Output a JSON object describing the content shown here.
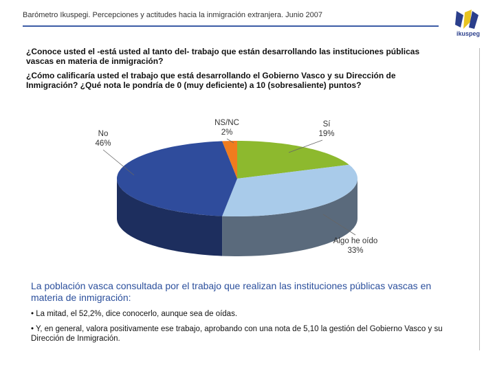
{
  "header": {
    "title": "Barómetro Ikuspegi. Percepciones y actitudes hacia la inmigración extranjera. Junio 2007",
    "logo": "ikuspeg"
  },
  "questions": [
    "¿Conoce usted el -está usted al tanto del-  trabajo que están desarrollando las instituciones públicas vascas en materia de inmigración?",
    "¿Cómo calificaría usted el trabajo que está desarrollando el Gobierno Vasco y su Dirección de Inmigración? ¿Qué nota le pondría de 0 (muy deficiente) a 10 (sobresaliente) puntos?"
  ],
  "chart_data": {
    "type": "pie",
    "categories": [
      "Sí",
      "Algo he oído",
      "No",
      "NS/NC"
    ],
    "values": [
      19,
      33,
      46,
      2
    ],
    "value_labels": [
      "19%",
      "33%",
      "46%",
      "2%"
    ],
    "colors": [
      "#8db92e",
      "#a9cbea",
      "#2f4c9c",
      "#f07c1e"
    ],
    "side_colors": [
      "#5f7d1f",
      "#5a6a7c",
      "#1d2e5e",
      "#a3530f"
    ]
  },
  "summary": {
    "heading": "La población vasca consultada por el trabajo que realizan las instituciones públicas vascas en materia de inmigración:",
    "bullets": [
      "• La mitad, el 52,2%, dice conocerlo, aunque sea de oídas.",
      "• Y, en general, valora positivamente ese trabajo, aprobando con una nota de 5,10 la gestión del Gobierno Vasco y su Dirección de Inmigración."
    ]
  }
}
